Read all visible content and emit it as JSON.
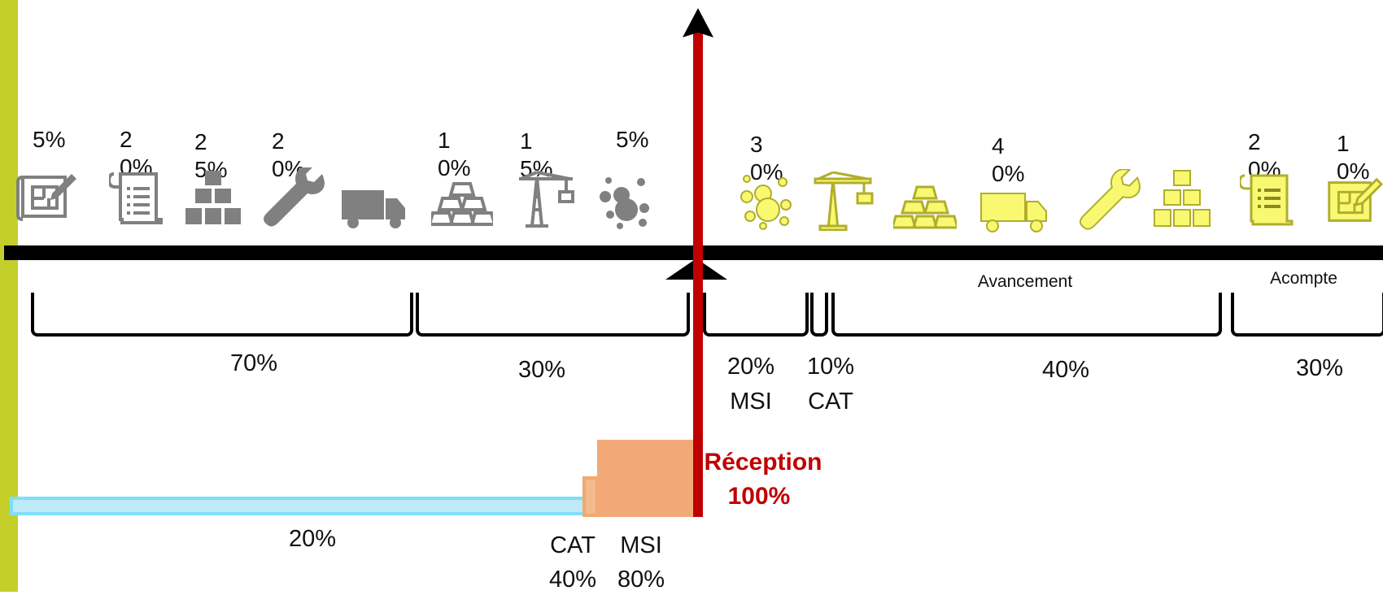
{
  "colors": {
    "stripe": "#c4cf2a",
    "gray_icons": "#808080",
    "yellow_icons": "#f9f871",
    "red": "#c00000",
    "blue": "#bfe9f7",
    "orange": "#f2a977"
  },
  "top_percents": {
    "gray": [
      "5%",
      "20%",
      "25%",
      "20%",
      "10%",
      "15%",
      "5%"
    ],
    "yellow": [
      "30%",
      "40%",
      "20%",
      "10%"
    ]
  },
  "icons": {
    "gray": [
      "plan-icon",
      "document-icon",
      "boxes-icon",
      "wrench-icon",
      "truck-icon",
      "gold-bars-icon",
      "crane-icon",
      "bubbles-icon"
    ],
    "yellow": [
      "bubbles-icon",
      "crane-icon",
      "gold-bars-icon",
      "truck-icon",
      "wrench-icon",
      "boxes-icon",
      "document-icon",
      "plan-icon"
    ]
  },
  "brackets": {
    "b1": "70%",
    "b2": "30%",
    "b3_pct": "20%",
    "b3_name": "MSI",
    "b4_pct": "10%",
    "b4_name": "CAT",
    "b5": "40%",
    "b6": "30%",
    "avancement": "Avancement",
    "acompte": "Acompte"
  },
  "reception": {
    "title": "Réception",
    "value": "100%"
  },
  "bottom": {
    "blue_pct": "20%",
    "cat_name": "CAT",
    "cat_pct": "40%",
    "msi_name": "MSI",
    "msi_pct": "80%"
  }
}
